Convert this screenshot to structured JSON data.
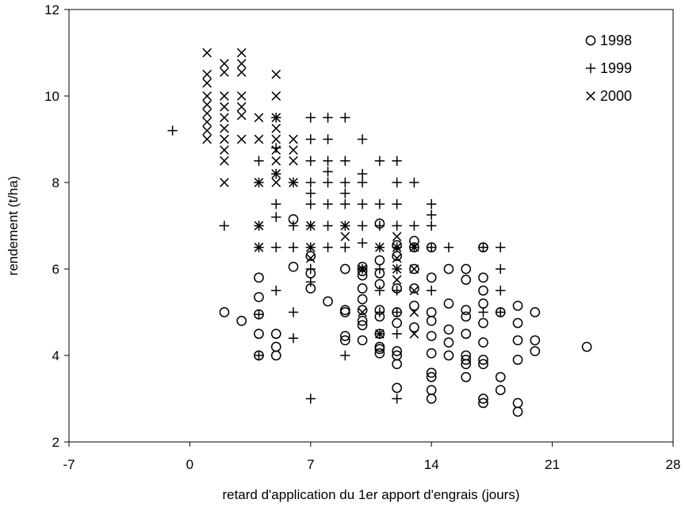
{
  "chart_data": {
    "type": "scatter",
    "xlabel": "retard d'application du 1er apport d'engrais (jours)",
    "ylabel": "rendement (t/ha)",
    "xlim": [
      -7,
      28
    ],
    "ylim": [
      2,
      12
    ],
    "xticks": [
      "-7",
      "0",
      "7",
      "14",
      "21",
      "28"
    ],
    "yticks": [
      "2",
      "4",
      "6",
      "8",
      "10",
      "12"
    ],
    "grid": false,
    "legend_position": "top-right",
    "series": [
      {
        "name": "1998",
        "marker": "circle",
        "points": [
          [
            2,
            5.0
          ],
          [
            3,
            4.8
          ],
          [
            4,
            5.8
          ],
          [
            4,
            5.35
          ],
          [
            4,
            4.5
          ],
          [
            4,
            4.0
          ],
          [
            4,
            4.95
          ],
          [
            5,
            4.5
          ],
          [
            5,
            4.2
          ],
          [
            5,
            4.0
          ],
          [
            6,
            6.05
          ],
          [
            6,
            7.15
          ],
          [
            7,
            5.9
          ],
          [
            7,
            5.55
          ],
          [
            7,
            6.3
          ],
          [
            8,
            5.25
          ],
          [
            9,
            6.0
          ],
          [
            9,
            5.05
          ],
          [
            9,
            5.0
          ],
          [
            9,
            4.45
          ],
          [
            9,
            4.35
          ],
          [
            10,
            5.95
          ],
          [
            10,
            5.85
          ],
          [
            10,
            5.55
          ],
          [
            10,
            5.3
          ],
          [
            10,
            5.05
          ],
          [
            10,
            4.8
          ],
          [
            10,
            4.7
          ],
          [
            10,
            4.35
          ],
          [
            10,
            6.05
          ],
          [
            11,
            7.05
          ],
          [
            11,
            6.2
          ],
          [
            11,
            5.9
          ],
          [
            11,
            5.65
          ],
          [
            11,
            5.05
          ],
          [
            11,
            4.9
          ],
          [
            11,
            4.5
          ],
          [
            11,
            4.2
          ],
          [
            11,
            4.15
          ],
          [
            11,
            4.05
          ],
          [
            12,
            5.55
          ],
          [
            12,
            5.0
          ],
          [
            12,
            4.75
          ],
          [
            12,
            4.1
          ],
          [
            12,
            4.0
          ],
          [
            12,
            3.8
          ],
          [
            12,
            3.25
          ],
          [
            12,
            6.3
          ],
          [
            12,
            6.55
          ],
          [
            13,
            6.65
          ],
          [
            13,
            6.0
          ],
          [
            13,
            5.55
          ],
          [
            13,
            5.15
          ],
          [
            13,
            4.65
          ],
          [
            13,
            6.5
          ],
          [
            14,
            5.8
          ],
          [
            14,
            5.0
          ],
          [
            14,
            4.8
          ],
          [
            14,
            4.45
          ],
          [
            14,
            4.05
          ],
          [
            14,
            3.6
          ],
          [
            14,
            3.5
          ],
          [
            14,
            3.2
          ],
          [
            14,
            3.0
          ],
          [
            14,
            6.5
          ],
          [
            15,
            6.0
          ],
          [
            15,
            5.2
          ],
          [
            15,
            4.6
          ],
          [
            15,
            4.3
          ],
          [
            15,
            4.0
          ],
          [
            16,
            6.0
          ],
          [
            16,
            5.75
          ],
          [
            16,
            5.05
          ],
          [
            16,
            4.9
          ],
          [
            16,
            4.5
          ],
          [
            16,
            4.0
          ],
          [
            16,
            3.9
          ],
          [
            16,
            3.8
          ],
          [
            16,
            3.5
          ],
          [
            17,
            6.5
          ],
          [
            17,
            5.8
          ],
          [
            17,
            5.5
          ],
          [
            17,
            5.2
          ],
          [
            17,
            4.75
          ],
          [
            17,
            4.3
          ],
          [
            17,
            3.9
          ],
          [
            17,
            3.8
          ],
          [
            17,
            3.0
          ],
          [
            17,
            2.9
          ],
          [
            18,
            5.0
          ],
          [
            18,
            3.5
          ],
          [
            18,
            3.2
          ],
          [
            19,
            5.15
          ],
          [
            19,
            4.75
          ],
          [
            19,
            4.35
          ],
          [
            19,
            3.9
          ],
          [
            19,
            2.9
          ],
          [
            19,
            2.7
          ],
          [
            20,
            5.0
          ],
          [
            20,
            4.35
          ],
          [
            20,
            4.1
          ],
          [
            23,
            4.2
          ]
        ]
      },
      {
        "name": "1999",
        "marker": "plus",
        "points": [
          [
            -1,
            9.2
          ],
          [
            2,
            7.0
          ],
          [
            4,
            8.0
          ],
          [
            4,
            7.0
          ],
          [
            4,
            6.5
          ],
          [
            4,
            4.95
          ],
          [
            4,
            4.0
          ],
          [
            4,
            8.5
          ],
          [
            5,
            9.5
          ],
          [
            5,
            8.8
          ],
          [
            5,
            8.2
          ],
          [
            5,
            7.5
          ],
          [
            5,
            7.2
          ],
          [
            5,
            6.5
          ],
          [
            5,
            5.5
          ],
          [
            6,
            8.0
          ],
          [
            6,
            7.0
          ],
          [
            6,
            6.5
          ],
          [
            6,
            5.0
          ],
          [
            6,
            4.4
          ],
          [
            7,
            9.5
          ],
          [
            7,
            9.0
          ],
          [
            7,
            8.5
          ],
          [
            7,
            8.0
          ],
          [
            7,
            7.75
          ],
          [
            7,
            7.5
          ],
          [
            7,
            7.0
          ],
          [
            7,
            6.5
          ],
          [
            7,
            6.0
          ],
          [
            7,
            5.7
          ],
          [
            7,
            3.0
          ],
          [
            8,
            9.5
          ],
          [
            8,
            9.0
          ],
          [
            8,
            8.5
          ],
          [
            8,
            8.25
          ],
          [
            8,
            8.0
          ],
          [
            8,
            7.5
          ],
          [
            8,
            7.0
          ],
          [
            8,
            6.5
          ],
          [
            9,
            9.5
          ],
          [
            9,
            8.5
          ],
          [
            9,
            8.0
          ],
          [
            9,
            7.75
          ],
          [
            9,
            7.5
          ],
          [
            9,
            7.0
          ],
          [
            9,
            6.5
          ],
          [
            9,
            4.0
          ],
          [
            10,
            9.0
          ],
          [
            10,
            8.2
          ],
          [
            10,
            8.0
          ],
          [
            10,
            7.5
          ],
          [
            10,
            7.0
          ],
          [
            10,
            6.6
          ],
          [
            10,
            6.0
          ],
          [
            11,
            8.5
          ],
          [
            11,
            7.5
          ],
          [
            11,
            7.0
          ],
          [
            11,
            6.5
          ],
          [
            11,
            6.0
          ],
          [
            11,
            5.5
          ],
          [
            11,
            5.0
          ],
          [
            11,
            4.5
          ],
          [
            12,
            8.5
          ],
          [
            12,
            8.0
          ],
          [
            12,
            7.5
          ],
          [
            12,
            7.0
          ],
          [
            12,
            6.5
          ],
          [
            12,
            6.0
          ],
          [
            12,
            5.5
          ],
          [
            12,
            5.0
          ],
          [
            12,
            4.5
          ],
          [
            12,
            3.0
          ],
          [
            13,
            8.0
          ],
          [
            13,
            7.0
          ],
          [
            13,
            6.5
          ],
          [
            14,
            7.5
          ],
          [
            14,
            7.25
          ],
          [
            14,
            7.0
          ],
          [
            14,
            6.5
          ],
          [
            14,
            5.5
          ],
          [
            15,
            6.5
          ],
          [
            17,
            6.5
          ],
          [
            17,
            5.0
          ],
          [
            18,
            6.5
          ],
          [
            18,
            6.0
          ],
          [
            18,
            5.5
          ],
          [
            18,
            5.0
          ]
        ]
      },
      {
        "name": "2000",
        "marker": "x",
        "points": [
          [
            1,
            11.0
          ],
          [
            1,
            10.5
          ],
          [
            1,
            10.3
          ],
          [
            1,
            10.0
          ],
          [
            1,
            9.8
          ],
          [
            1,
            9.6
          ],
          [
            1,
            9.4
          ],
          [
            1,
            9.2
          ],
          [
            1,
            9.0
          ],
          [
            2,
            10.75
          ],
          [
            2,
            10.55
          ],
          [
            2,
            10.0
          ],
          [
            2,
            9.75
          ],
          [
            2,
            9.5
          ],
          [
            2,
            9.25
          ],
          [
            2,
            9.0
          ],
          [
            2,
            8.75
          ],
          [
            2,
            8.5
          ],
          [
            2,
            8.0
          ],
          [
            3,
            11.0
          ],
          [
            3,
            10.75
          ],
          [
            3,
            10.55
          ],
          [
            3,
            10.0
          ],
          [
            3,
            9.75
          ],
          [
            3,
            9.55
          ],
          [
            3,
            9.0
          ],
          [
            4,
            9.5
          ],
          [
            4,
            9.0
          ],
          [
            4,
            8.0
          ],
          [
            4,
            7.0
          ],
          [
            4,
            6.5
          ],
          [
            5,
            10.5
          ],
          [
            5,
            10.0
          ],
          [
            5,
            9.5
          ],
          [
            5,
            9.25
          ],
          [
            5,
            9.0
          ],
          [
            5,
            8.75
          ],
          [
            5,
            8.5
          ],
          [
            5,
            8.0
          ],
          [
            5,
            8.2
          ],
          [
            6,
            9.0
          ],
          [
            6,
            8.75
          ],
          [
            6,
            8.5
          ],
          [
            6,
            8.0
          ],
          [
            7,
            7.0
          ],
          [
            7,
            6.5
          ],
          [
            7,
            6.25
          ],
          [
            9,
            7.0
          ],
          [
            9,
            6.75
          ],
          [
            10,
            6.0
          ],
          [
            10,
            5.0
          ],
          [
            11,
            6.5
          ],
          [
            11,
            4.5
          ],
          [
            12,
            6.75
          ],
          [
            12,
            6.5
          ],
          [
            12,
            6.25
          ],
          [
            12,
            6.0
          ],
          [
            12,
            5.75
          ],
          [
            13,
            6.5
          ],
          [
            13,
            6.0
          ],
          [
            13,
            5.5
          ],
          [
            13,
            5.0
          ],
          [
            13,
            4.5
          ]
        ]
      }
    ]
  }
}
